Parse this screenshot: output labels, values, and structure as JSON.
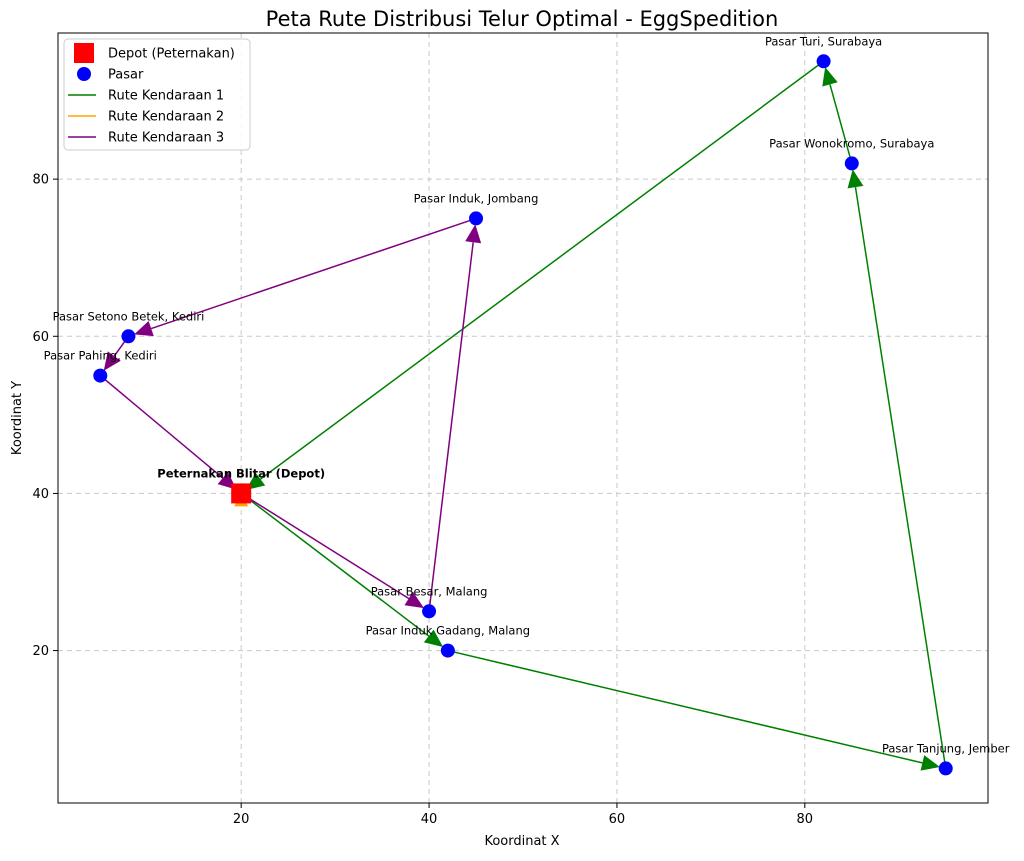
{
  "chart_data": {
    "type": "scatter",
    "title": "Peta Rute Distribusi Telur Optimal - EggSpedition",
    "xlabel": "Koordinat X",
    "ylabel": "Koordinat Y",
    "xlim": [
      0.5,
      99.5
    ],
    "ylim": [
      0.6,
      98.6
    ],
    "xticks": [
      20,
      40,
      60,
      80
    ],
    "yticks": [
      20,
      40,
      60,
      80
    ],
    "grid": true,
    "legend_position": "top-left",
    "depot": {
      "name": "Peternakan Blitar (Depot)",
      "x": 20,
      "y": 40,
      "color": "#ff0000"
    },
    "markets": [
      {
        "name": "Pasar Turi, Surabaya",
        "x": 82,
        "y": 95
      },
      {
        "name": "Pasar Wonokromo, Surabaya",
        "x": 85,
        "y": 82
      },
      {
        "name": "Pasar Induk, Jombang",
        "x": 45,
        "y": 75
      },
      {
        "name": "Pasar Setono Betek, Kediri",
        "x": 8,
        "y": 60
      },
      {
        "name": "Pasar Pahing, Kediri",
        "x": 5,
        "y": 55
      },
      {
        "name": "Pasar Besar, Malang",
        "x": 40,
        "y": 25
      },
      {
        "name": "Pasar Induk Gadang, Malang",
        "x": 42,
        "y": 20
      },
      {
        "name": "Pasar Tanjung, Jember",
        "x": 95,
        "y": 5
      }
    ],
    "market_color": "#0000ff",
    "series": [
      {
        "name": "Rute Kendaraan 1",
        "color": "#008000",
        "route": [
          "Peternakan Blitar (Depot)",
          "Pasar Induk Gadang, Malang",
          "Pasar Tanjung, Jember",
          "Pasar Wonokromo, Surabaya",
          "Pasar Turi, Surabaya",
          "Peternakan Blitar (Depot)"
        ]
      },
      {
        "name": "Rute Kendaraan 2",
        "color": "#ffa500",
        "route": [
          "Peternakan Blitar (Depot)",
          "Peternakan Blitar (Depot)"
        ]
      },
      {
        "name": "Rute Kendaraan 3",
        "color": "#800080",
        "route": [
          "Peternakan Blitar (Depot)",
          "Pasar Besar, Malang",
          "Pasar Induk, Jombang",
          "Pasar Setono Betek, Kediri",
          "Pasar Pahing, Kediri",
          "Peternakan Blitar (Depot)"
        ]
      }
    ],
    "legend": [
      {
        "label": "Depot (Peternakan)",
        "marker": "square",
        "color": "#ff0000"
      },
      {
        "label": "Pasar",
        "marker": "circle",
        "color": "#0000ff"
      },
      {
        "label": "Rute Kendaraan 1",
        "marker": "line",
        "color": "#008000"
      },
      {
        "label": "Rute Kendaraan 2",
        "marker": "line",
        "color": "#ffa500"
      },
      {
        "label": "Rute Kendaraan 3",
        "marker": "line",
        "color": "#800080"
      }
    ]
  }
}
